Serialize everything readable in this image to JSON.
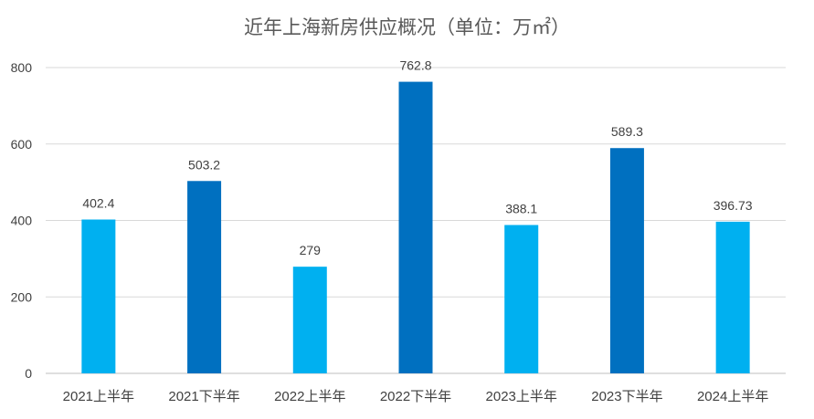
{
  "chart_data": {
    "type": "bar",
    "title": "近年上海新房供应概况（单位：万㎡）",
    "categories": [
      "2021上半年",
      "2021下半年",
      "2022上半年",
      "2022下半年",
      "2023上半年",
      "2023下半年",
      "2024上半年"
    ],
    "values": [
      402.4,
      503.2,
      279,
      762.8,
      388.1,
      589.3,
      396.73
    ],
    "data_labels": [
      "402.4",
      "503.2",
      "279",
      "762.8",
      "388.1",
      "589.3",
      "396.73"
    ],
    "bar_colors": [
      "#00B0F0",
      "#0070C0",
      "#00B0F0",
      "#0070C0",
      "#00B0F0",
      "#0070C0",
      "#00B0F0"
    ],
    "yticks": [
      "0",
      "200",
      "400",
      "600",
      "800"
    ],
    "ytick_values": [
      0,
      200,
      400,
      600,
      800
    ],
    "ylim": [
      0,
      800
    ],
    "xlabel": "",
    "ylabel": "",
    "grid": true,
    "legend": "none"
  }
}
